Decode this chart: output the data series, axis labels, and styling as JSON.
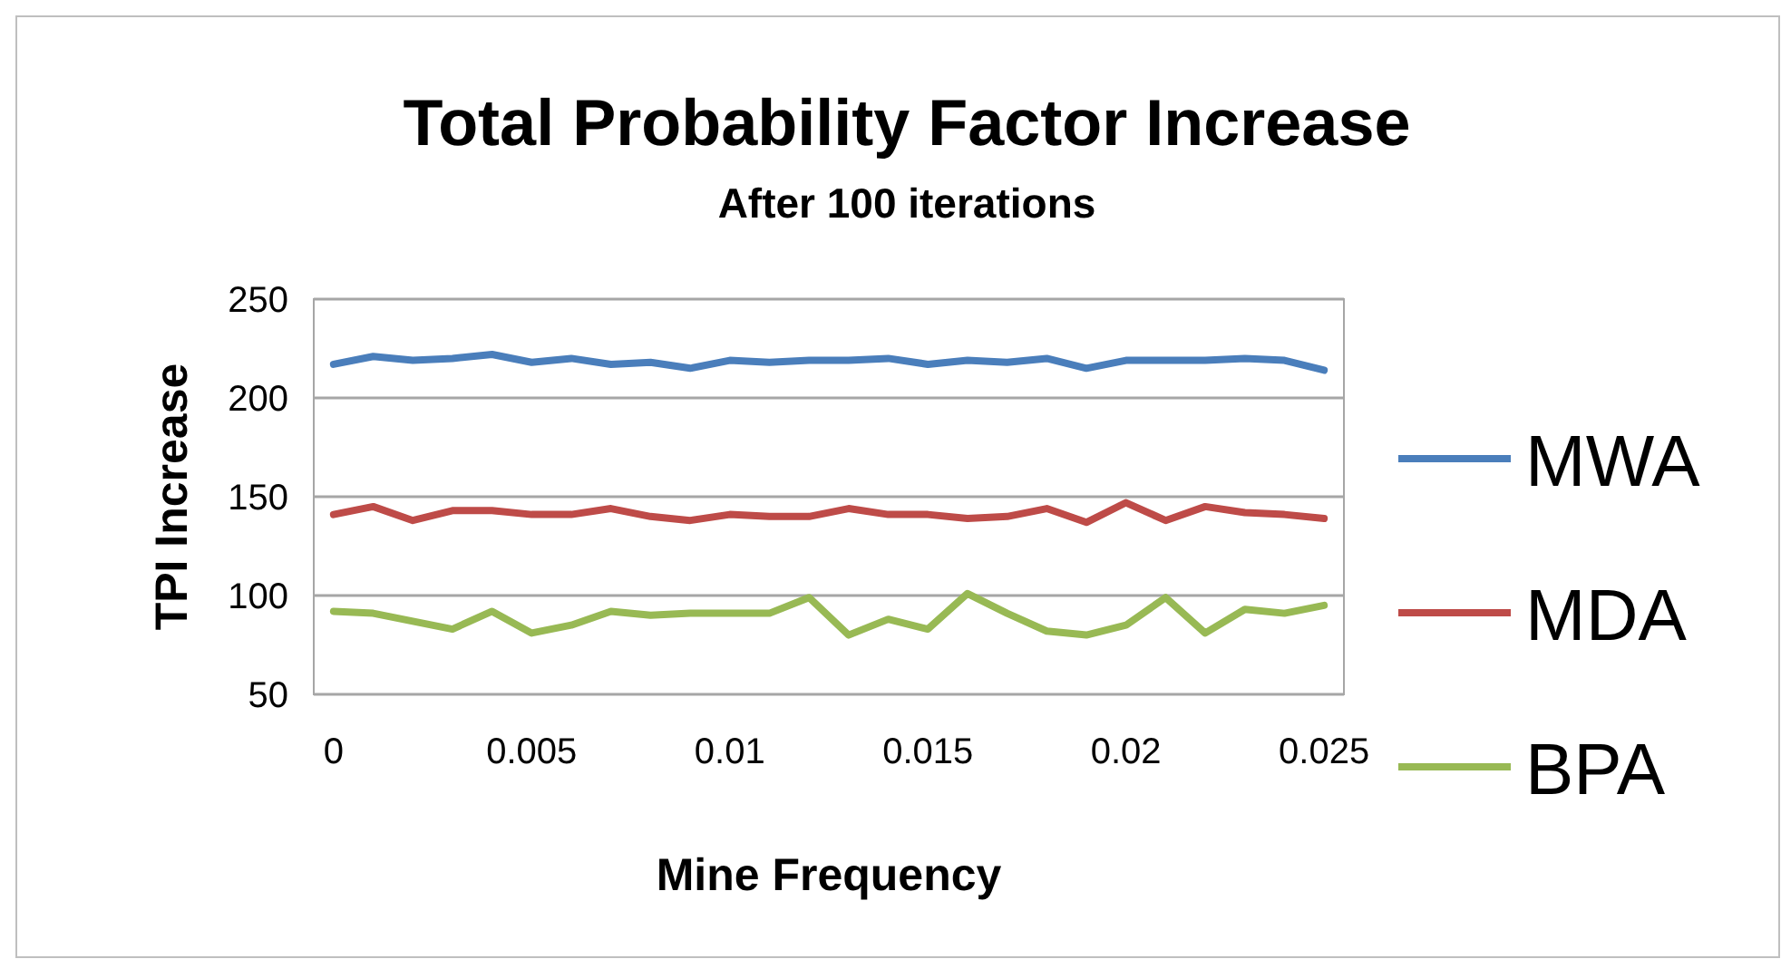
{
  "chart_data": {
    "type": "line",
    "title": "Total Probability Factor Increase",
    "subtitle": "After 100 iterations",
    "xlabel": "Mine Frequency",
    "ylabel": "TPI Increase",
    "categories": [
      "0",
      null,
      null,
      null,
      null,
      "0.005",
      null,
      null,
      null,
      null,
      "0.01",
      null,
      null,
      null,
      null,
      "0.015",
      null,
      null,
      null,
      null,
      "0.02",
      null,
      null,
      null,
      null,
      "0.025"
    ],
    "ylim": [
      50,
      250
    ],
    "yticks": [
      50,
      100,
      150,
      200,
      250
    ],
    "grid": "y",
    "legend": "right",
    "marker": "none",
    "line_style": "solid",
    "series": [
      {
        "name": "MWA",
        "color": "#4a7ebb",
        "values": [
          217,
          221,
          219,
          220,
          222,
          218,
          220,
          217,
          218,
          215,
          219,
          218,
          219,
          219,
          220,
          217,
          219,
          218,
          220,
          215,
          219,
          219,
          219,
          220,
          219,
          214
        ]
      },
      {
        "name": "MDA",
        "color": "#be4b48",
        "values": [
          141,
          145,
          138,
          143,
          143,
          141,
          141,
          144,
          140,
          138,
          141,
          140,
          140,
          144,
          141,
          141,
          139,
          140,
          144,
          137,
          147,
          138,
          145,
          142,
          141,
          139
        ]
      },
      {
        "name": "BPA",
        "color": "#98b954",
        "values": [
          92,
          91,
          87,
          83,
          92,
          81,
          85,
          92,
          90,
          91,
          91,
          91,
          99,
          80,
          88,
          83,
          101,
          91,
          82,
          80,
          85,
          99,
          81,
          93,
          91,
          95
        ]
      }
    ]
  }
}
